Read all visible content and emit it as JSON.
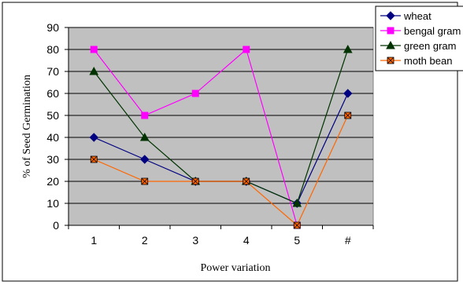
{
  "chart_data": {
    "type": "line",
    "title": "",
    "xlabel": "Power variation",
    "ylabel": "% of Seed Germination",
    "categories": [
      "1",
      "2",
      "3",
      "4",
      "5",
      "#"
    ],
    "ylim": [
      0,
      90
    ],
    "yticks": [
      0,
      10,
      20,
      30,
      40,
      50,
      60,
      70,
      80,
      90
    ],
    "grid": "horizontal",
    "legend_position": "top-right",
    "plot_background": "#c0c0c0",
    "series": [
      {
        "name": "wheat",
        "color": "#000080",
        "marker": "diamond",
        "values": [
          40,
          30,
          20,
          20,
          10,
          60
        ]
      },
      {
        "name": "bengal gram",
        "color": "#ff00ff",
        "marker": "square",
        "values": [
          80,
          50,
          60,
          80,
          0,
          null
        ]
      },
      {
        "name": "green gram",
        "color": "#003300",
        "marker": "triangle",
        "values": [
          70,
          40,
          20,
          20,
          10,
          80
        ]
      },
      {
        "name": "moth bean",
        "color": "#ff6600",
        "marker": "x-square",
        "values": [
          30,
          20,
          20,
          20,
          0,
          50
        ]
      }
    ]
  }
}
